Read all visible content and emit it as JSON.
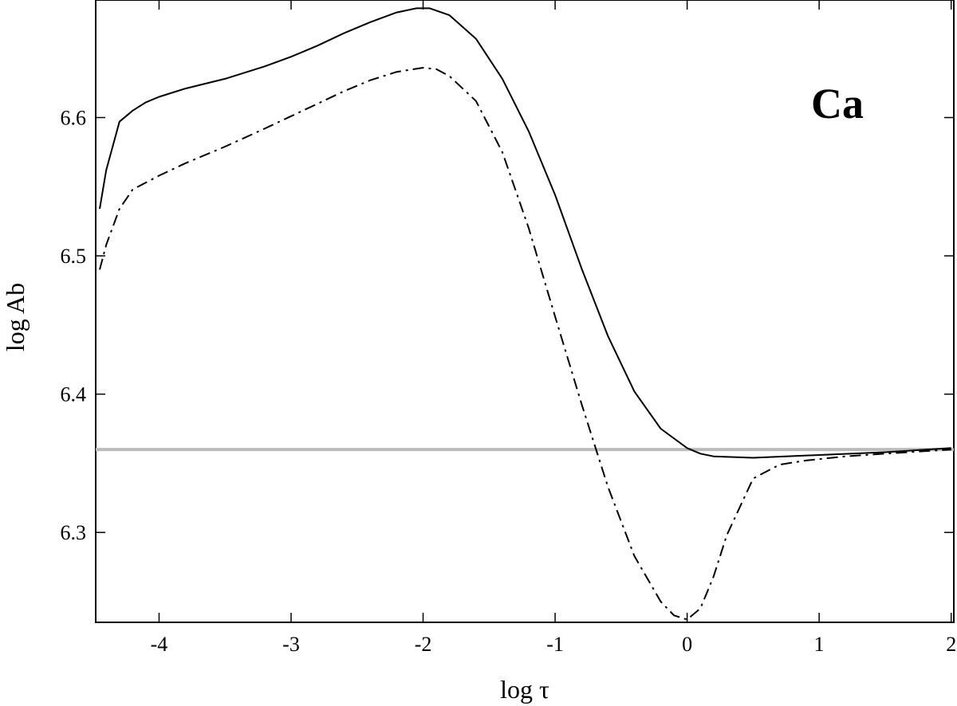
{
  "chart_data": {
    "type": "line",
    "xlabel": "log τ",
    "ylabel": "log Ab",
    "annotation": "Ca",
    "xlim": [
      -4.48,
      2.02
    ],
    "ylim": [
      6.235,
      6.685
    ],
    "xticks": [
      -4,
      -3,
      -2,
      -1,
      0,
      1,
      2
    ],
    "xtick_labels": [
      "-4",
      "-3",
      "-2",
      "-1",
      "0",
      "1",
      "2"
    ],
    "yticks": [
      6.3,
      6.4,
      6.5,
      6.6
    ],
    "ytick_labels": [
      "6.3",
      "6.4",
      "6.5",
      "6.6"
    ],
    "grid": false,
    "legend": "none",
    "series": [
      {
        "style": "solid",
        "color": "#000000",
        "x": [
          -4.45,
          -4.4,
          -4.3,
          -4.2,
          -4.1,
          -4.0,
          -3.8,
          -3.5,
          -3.2,
          -3.0,
          -2.8,
          -2.6,
          -2.4,
          -2.2,
          -2.05,
          -1.95,
          -1.8,
          -1.6,
          -1.4,
          -1.2,
          -1.0,
          -0.8,
          -0.6,
          -0.4,
          -0.2,
          0.0,
          0.1,
          0.2,
          0.5,
          1.0,
          1.5,
          2.0
        ],
        "y": [
          6.534,
          6.562,
          6.597,
          6.605,
          6.611,
          6.615,
          6.621,
          6.628,
          6.637,
          6.644,
          6.652,
          6.661,
          6.669,
          6.676,
          6.679,
          6.679,
          6.674,
          6.657,
          6.628,
          6.59,
          6.544,
          6.491,
          6.442,
          6.402,
          6.375,
          6.361,
          6.357,
          6.355,
          6.354,
          6.356,
          6.358,
          6.361
        ]
      },
      {
        "style": "dash-dot",
        "color": "#000000",
        "x": [
          -4.45,
          -4.4,
          -4.3,
          -4.2,
          -4.0,
          -3.8,
          -3.5,
          -3.2,
          -3.0,
          -2.8,
          -2.6,
          -2.4,
          -2.2,
          -2.0,
          -1.9,
          -1.8,
          -1.6,
          -1.4,
          -1.2,
          -1.0,
          -0.8,
          -0.6,
          -0.4,
          -0.2,
          -0.1,
          0.0,
          0.1,
          0.2,
          0.3,
          0.5,
          0.7,
          0.9,
          1.2,
          1.5,
          2.0
        ],
        "y": [
          6.49,
          6.508,
          6.534,
          6.548,
          6.558,
          6.567,
          6.579,
          6.592,
          6.601,
          6.61,
          6.619,
          6.627,
          6.633,
          6.636,
          6.635,
          6.63,
          6.612,
          6.575,
          6.52,
          6.456,
          6.393,
          6.333,
          6.283,
          6.25,
          6.24,
          6.237,
          6.245,
          6.268,
          6.298,
          6.339,
          6.349,
          6.352,
          6.355,
          6.357,
          6.36
        ]
      },
      {
        "style": "solid",
        "color": "#bbbbbb",
        "x": [
          -4.48,
          2.02
        ],
        "y": [
          6.36,
          6.36
        ]
      }
    ]
  }
}
